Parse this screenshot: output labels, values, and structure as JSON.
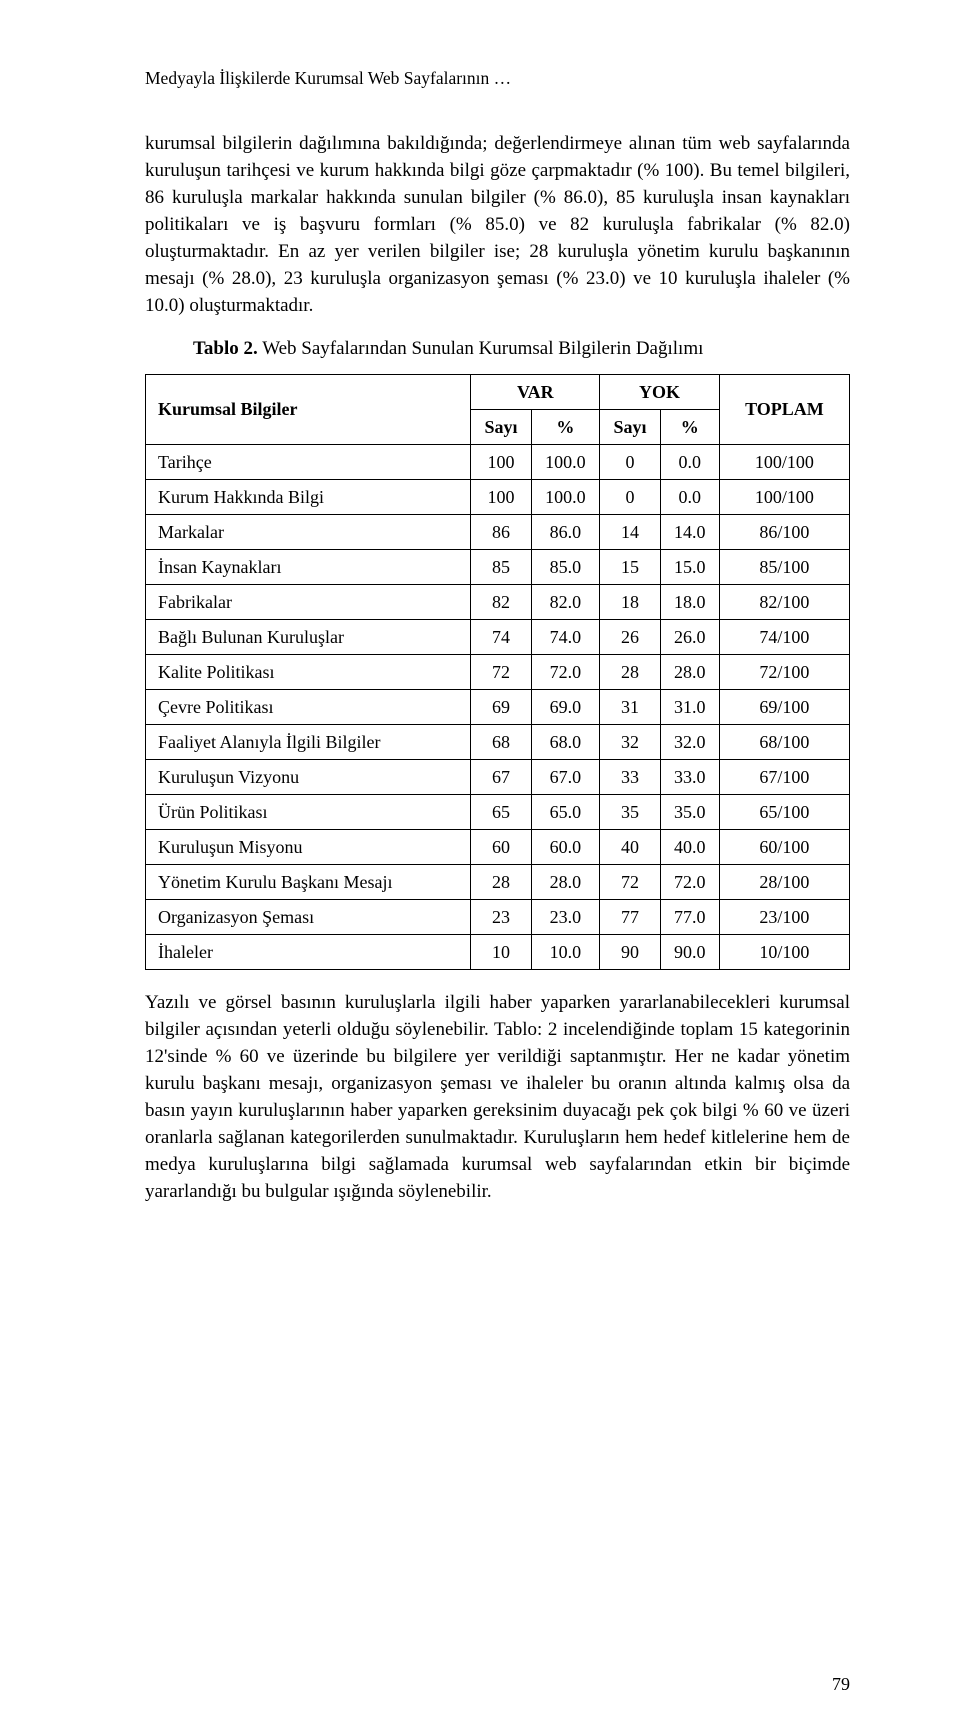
{
  "page": {
    "running_head": "Medyayla İlişkilerde Kurumsal Web Sayfalarının …",
    "page_number": "79"
  },
  "paragraphs": {
    "p1": "kurumsal bilgilerin dağılımına bakıldığında; değerlendirmeye alınan tüm web sayfalarında kuruluşun tarihçesi ve kurum hakkında bilgi göze çarpmaktadır (% 100). Bu temel bilgileri, 86 kuruluşla markalar hakkında sunulan bilgiler (% 86.0), 85 kuruluşla insan kaynakları politikaları ve iş başvuru formları (% 85.0) ve 82 kuruluşla fabrikalar (% 82.0) oluşturmaktadır. En az yer verilen bilgiler ise; 28 kuruluşla yönetim kurulu başkanının mesajı (% 28.0), 23 kuruluşla organizasyon şeması (% 23.0) ve 10 kuruluşla ihaleler (% 10.0) oluşturmaktadır.",
    "p2": "Yazılı ve görsel basının kuruluşlarla ilgili haber yaparken yararlanabilecekleri kurumsal bilgiler açısından yeterli olduğu söylenebilir. Tablo: 2 incelendiğinde toplam 15 kategorinin 12'sinde % 60 ve üzerinde bu bilgilere yer verildiği saptanmıştır. Her ne kadar yönetim kurulu başkanı mesajı, organizasyon şeması ve ihaleler bu oranın altında kalmış olsa da basın yayın kuruluşlarının haber yaparken gereksinim duyacağı pek çok bilgi % 60 ve üzeri oranlarla sağlanan kategorilerden sunulmaktadır. Kuruluşların hem hedef kitlelerine hem de medya kuruluşlarına bilgi sağlamada kurumsal web sayfalarından etkin bir biçimde yararlandığı bu bulgular ışığında söylenebilir."
  },
  "table": {
    "caption_bold": "Tablo 2.",
    "caption_rest": " Web Sayfalarından Sunulan Kurumsal Bilgilerin Dağılımı",
    "header": {
      "row_label": "Kurumsal Bilgiler",
      "var": "VAR",
      "yok": "YOK",
      "toplam": "TOPLAM",
      "sayi": "Sayı",
      "pct": "%"
    },
    "rows": [
      {
        "label": "Tarihçe",
        "vs": "100",
        "vp": "100.0",
        "ys": "0",
        "yp": "0.0",
        "t": "100/100"
      },
      {
        "label": "Kurum Hakkında Bilgi",
        "vs": "100",
        "vp": "100.0",
        "ys": "0",
        "yp": "0.0",
        "t": "100/100"
      },
      {
        "label": "Markalar",
        "vs": "86",
        "vp": "86.0",
        "ys": "14",
        "yp": "14.0",
        "t": "86/100"
      },
      {
        "label": "İnsan Kaynakları",
        "vs": "85",
        "vp": "85.0",
        "ys": "15",
        "yp": "15.0",
        "t": "85/100"
      },
      {
        "label": "Fabrikalar",
        "vs": "82",
        "vp": "82.0",
        "ys": "18",
        "yp": "18.0",
        "t": "82/100"
      },
      {
        "label": "Bağlı Bulunan Kuruluşlar",
        "vs": "74",
        "vp": "74.0",
        "ys": "26",
        "yp": "26.0",
        "t": "74/100"
      },
      {
        "label": "Kalite Politikası",
        "vs": "72",
        "vp": "72.0",
        "ys": "28",
        "yp": "28.0",
        "t": "72/100"
      },
      {
        "label": "Çevre Politikası",
        "vs": "69",
        "vp": "69.0",
        "ys": "31",
        "yp": "31.0",
        "t": "69/100"
      },
      {
        "label": "Faaliyet Alanıyla İlgili Bilgiler",
        "vs": "68",
        "vp": "68.0",
        "ys": "32",
        "yp": "32.0",
        "t": "68/100"
      },
      {
        "label": "Kuruluşun Vizyonu",
        "vs": "67",
        "vp": "67.0",
        "ys": "33",
        "yp": "33.0",
        "t": "67/100"
      },
      {
        "label": "Ürün Politikası",
        "vs": "65",
        "vp": "65.0",
        "ys": "35",
        "yp": "35.0",
        "t": "65/100"
      },
      {
        "label": "Kuruluşun Misyonu",
        "vs": "60",
        "vp": "60.0",
        "ys": "40",
        "yp": "40.0",
        "t": "60/100"
      },
      {
        "label": "Yönetim Kurulu Başkanı Mesajı",
        "vs": "28",
        "vp": "28.0",
        "ys": "72",
        "yp": "72.0",
        "t": "28/100"
      },
      {
        "label": "Organizasyon Şeması",
        "vs": "23",
        "vp": "23.0",
        "ys": "77",
        "yp": "77.0",
        "t": "23/100"
      },
      {
        "label": "İhaleler",
        "vs": "10",
        "vp": "10.0",
        "ys": "90",
        "yp": "90.0",
        "t": "10/100"
      }
    ]
  }
}
